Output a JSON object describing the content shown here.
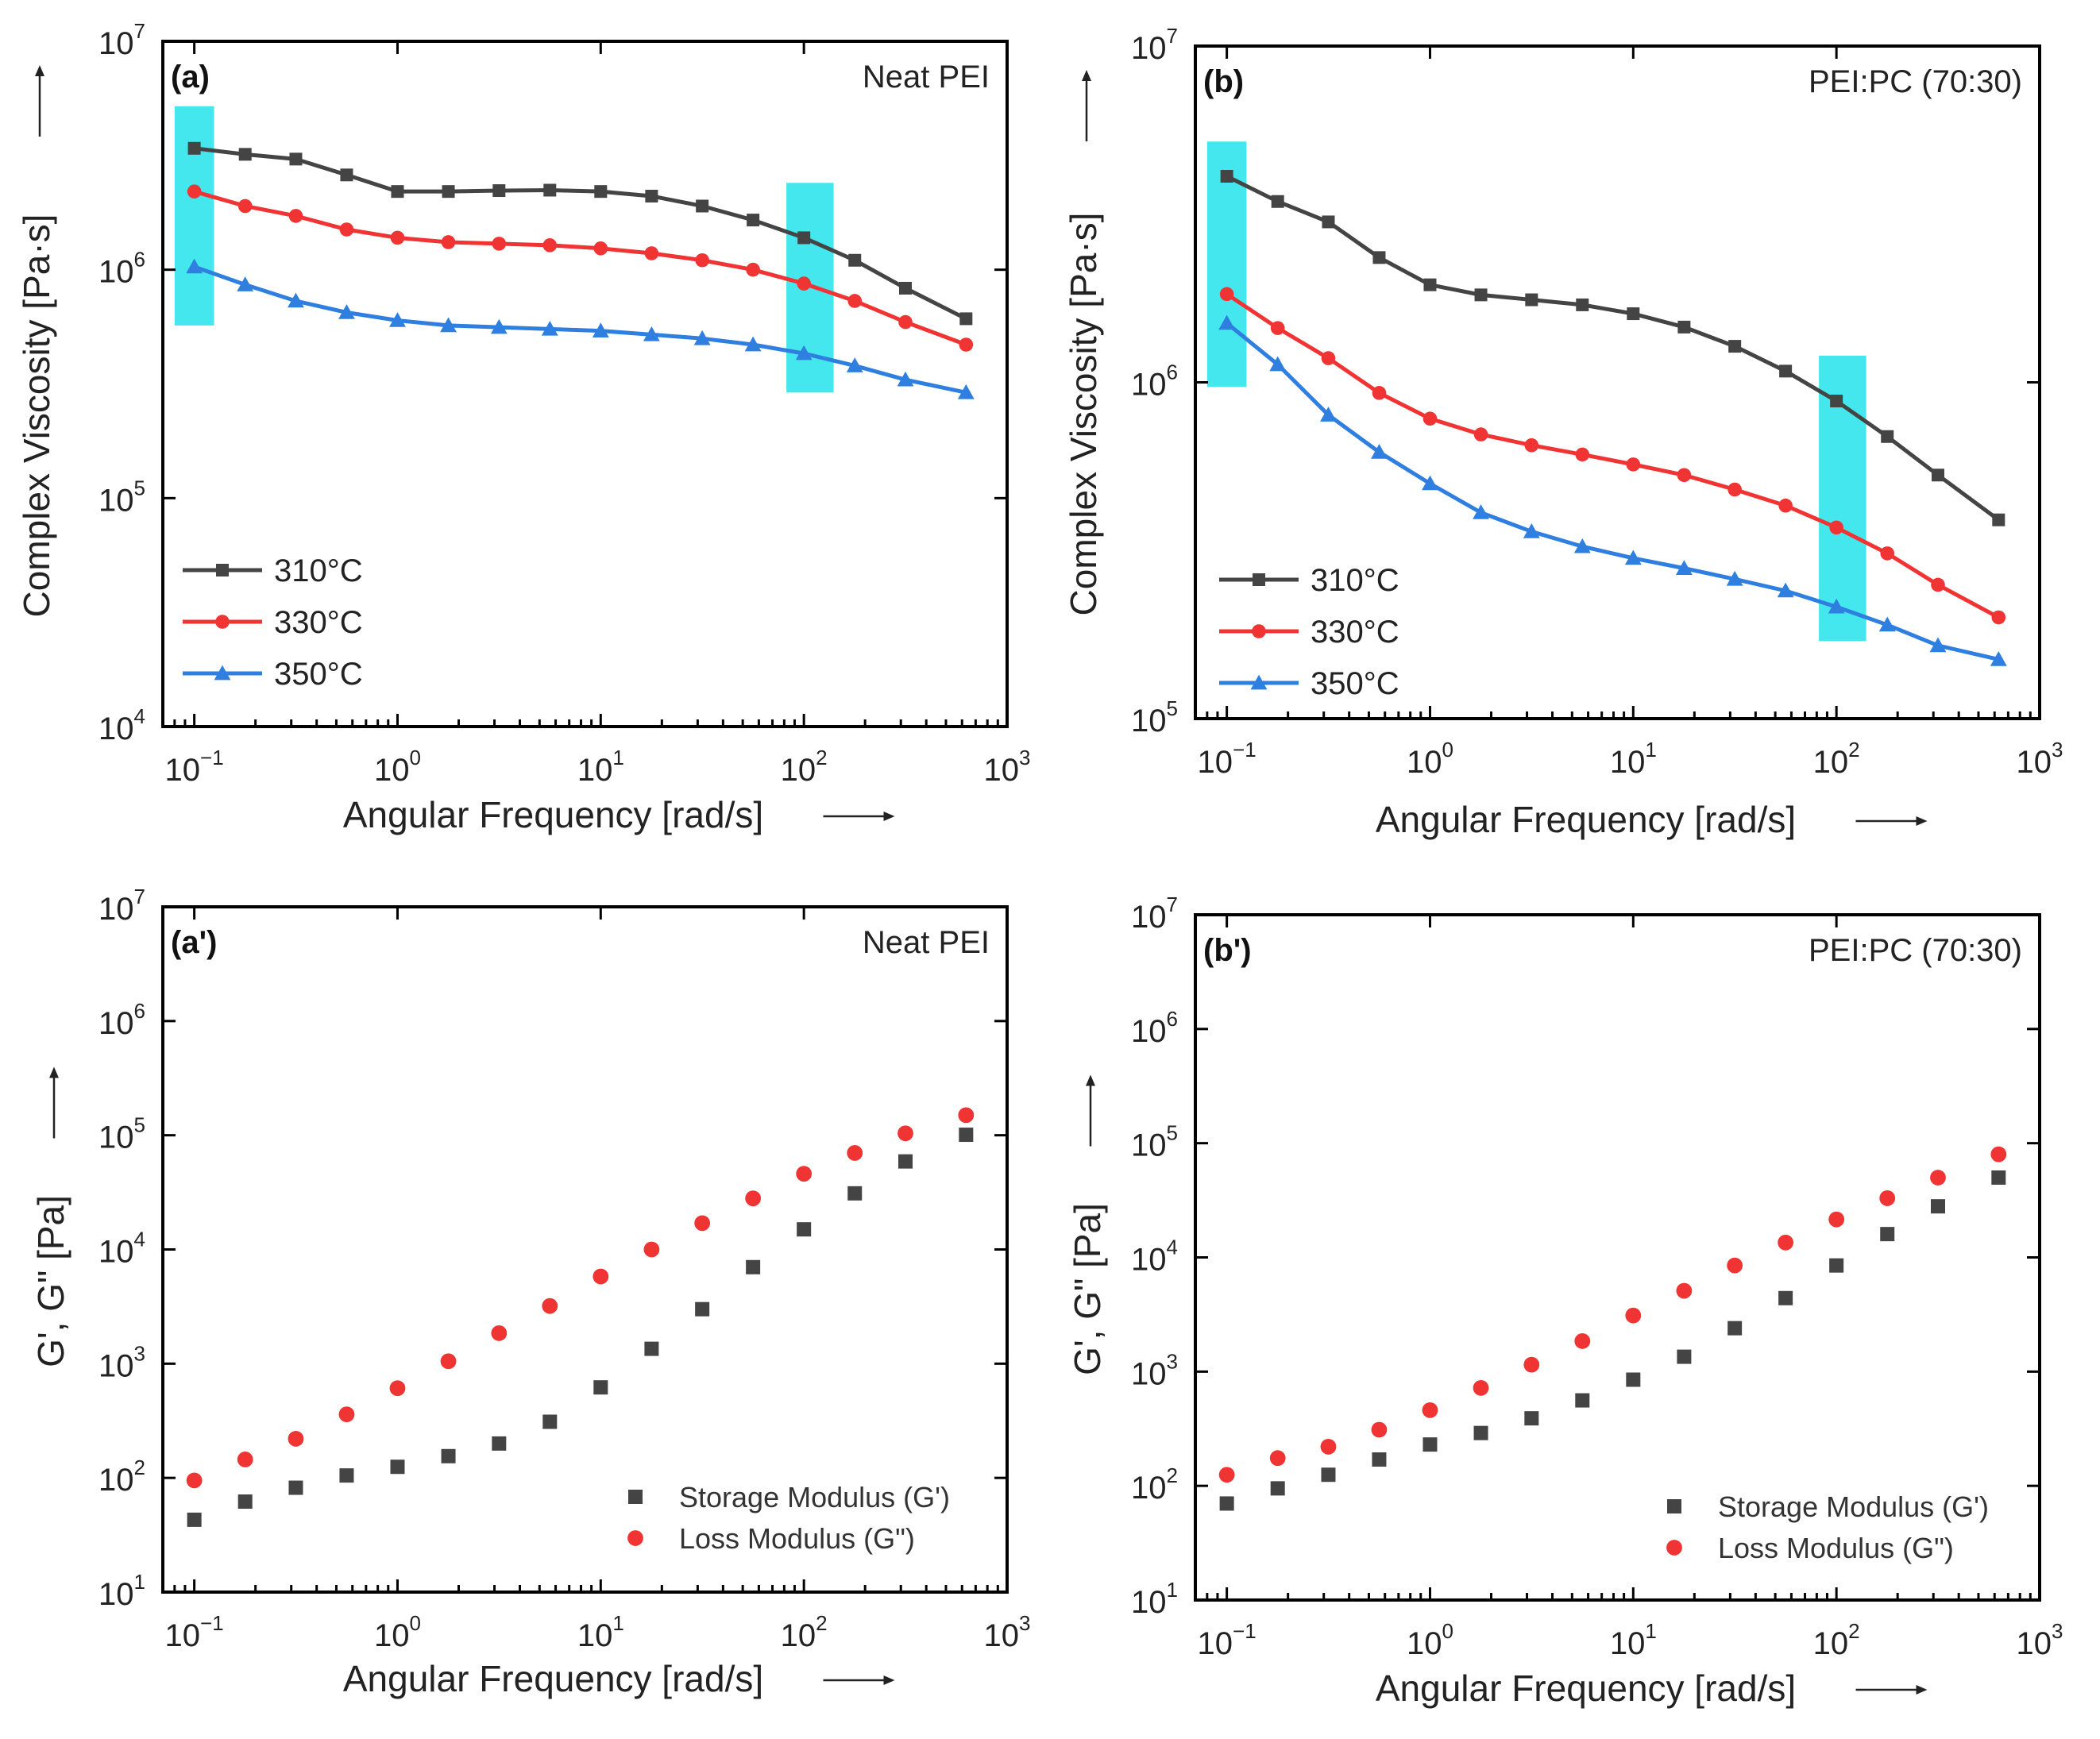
{
  "colors": {
    "c310": "#444444",
    "c330": "#f03434",
    "c350": "#2f7fe0",
    "storage": "#444444",
    "loss": "#f03434",
    "highlight": "#22e3ea"
  },
  "chart_data": [
    {
      "id": "a",
      "type": "line",
      "panel_label": "(a)",
      "sample": "Neat PEI",
      "xlabel": "Angular Frequency [rad/s]",
      "ylabel": "Complex Viscosity [Pa·s]",
      "xscale": "log",
      "yscale": "log",
      "xlim": [
        0.07,
        1000
      ],
      "ylim": [
        10000,
        10000000
      ],
      "xticks": [
        0.1,
        1,
        10,
        100,
        1000
      ],
      "xtick_labels": [
        [
          "10",
          "−1"
        ],
        [
          "10",
          "0"
        ],
        [
          "10",
          "1"
        ],
        [
          "10",
          "2"
        ],
        [
          "10",
          "3"
        ]
      ],
      "yticks": [
        10000,
        100000,
        1000000,
        10000000
      ],
      "ytick_labels": [
        [
          "10",
          "4"
        ],
        [
          "10",
          "5"
        ],
        [
          "10",
          "6"
        ],
        [
          "10",
          "7"
        ]
      ],
      "highlight_bands": [
        {
          "x": [
            0.08,
            0.125
          ],
          "y": [
            570000,
            5200000
          ]
        },
        {
          "x": [
            82,
            140
          ],
          "y": [
            290000,
            2400000
          ]
        }
      ],
      "legend": {
        "position": "bottom-left"
      },
      "x": [
        0.1,
        0.178,
        0.316,
        0.562,
        1,
        1.78,
        3.16,
        5.62,
        10,
        17.8,
        31.6,
        56.2,
        100,
        178,
        316,
        628
      ],
      "series": [
        {
          "name": "310°C",
          "marker": "square",
          "color_key": "c310",
          "values": [
            3400000,
            3200000,
            3050000,
            2600000,
            2200000,
            2200000,
            2220000,
            2230000,
            2200000,
            2100000,
            1900000,
            1650000,
            1380000,
            1100000,
            830000,
            610000
          ]
        },
        {
          "name": "330°C",
          "marker": "circle",
          "color_key": "c330",
          "values": [
            2200000,
            1900000,
            1720000,
            1500000,
            1380000,
            1320000,
            1300000,
            1280000,
            1240000,
            1180000,
            1100000,
            1000000,
            870000,
            730000,
            590000,
            470000
          ]
        },
        {
          "name": "350°C",
          "marker": "triangle",
          "color_key": "c350",
          "values": [
            1030000,
            860000,
            730000,
            650000,
            600000,
            570000,
            560000,
            550000,
            540000,
            520000,
            500000,
            470000,
            430000,
            380000,
            330000,
            290000
          ]
        }
      ]
    },
    {
      "id": "b",
      "type": "line",
      "panel_label": "(b)",
      "sample": "PEI:PC (70:30)",
      "xlabel": "Angular Frequency [rad/s]",
      "ylabel": "Complex Viscosity [Pa·s]",
      "xscale": "log",
      "yscale": "log",
      "xlim": [
        0.07,
        1000
      ],
      "ylim": [
        100000,
        10000000
      ],
      "xticks": [
        0.1,
        1,
        10,
        100,
        1000
      ],
      "xtick_labels": [
        [
          "10",
          "−1"
        ],
        [
          "10",
          "0"
        ],
        [
          "10",
          "1"
        ],
        [
          "10",
          "2"
        ],
        [
          "10",
          "3"
        ]
      ],
      "yticks": [
        100000,
        1000000,
        10000000
      ],
      "ytick_labels": [
        [
          "10",
          "5"
        ],
        [
          "10",
          "6"
        ],
        [
          "10",
          "7"
        ]
      ],
      "highlight_bands": [
        {
          "x": [
            0.08,
            0.125
          ],
          "y": [
            970000,
            5200000
          ]
        },
        {
          "x": [
            82,
            140
          ],
          "y": [
            170000,
            1200000
          ]
        }
      ],
      "legend": {
        "position": "bottom-left"
      },
      "x": [
        0.1,
        0.178,
        0.316,
        0.562,
        1,
        1.78,
        3.16,
        5.62,
        10,
        17.8,
        31.6,
        56.2,
        100,
        178,
        316,
        628
      ],
      "series": [
        {
          "name": "310°C",
          "marker": "square",
          "color_key": "c310",
          "values": [
            4100000,
            3450000,
            3000000,
            2350000,
            1950000,
            1820000,
            1760000,
            1700000,
            1600000,
            1460000,
            1280000,
            1080000,
            880000,
            690000,
            530000,
            390000
          ]
        },
        {
          "name": "330°C",
          "marker": "circle",
          "color_key": "c330",
          "values": [
            1830000,
            1450000,
            1180000,
            930000,
            780000,
            700000,
            650000,
            610000,
            570000,
            530000,
            480000,
            430000,
            370000,
            310000,
            250000,
            200000
          ]
        },
        {
          "name": "350°C",
          "marker": "triangle",
          "color_key": "c350",
          "values": [
            1500000,
            1130000,
            800000,
            620000,
            500000,
            410000,
            360000,
            325000,
            300000,
            280000,
            260000,
            240000,
            215000,
            190000,
            165000,
            150000
          ]
        }
      ]
    },
    {
      "id": "a2",
      "type": "scatter",
      "panel_label": "(a')",
      "sample": "Neat PEI",
      "xlabel": "Angular Frequency [rad/s]",
      "ylabel": "G', G\" [Pa]",
      "xscale": "log",
      "yscale": "log",
      "xlim": [
        0.07,
        1000
      ],
      "ylim": [
        10,
        10000000
      ],
      "xticks": [
        0.1,
        1,
        10,
        100,
        1000
      ],
      "xtick_labels": [
        [
          "10",
          "−1"
        ],
        [
          "10",
          "0"
        ],
        [
          "10",
          "1"
        ],
        [
          "10",
          "2"
        ],
        [
          "10",
          "3"
        ]
      ],
      "yticks": [
        10,
        100,
        1000,
        10000,
        100000,
        1000000,
        10000000
      ],
      "ytick_labels": [
        [
          "10",
          "1"
        ],
        [
          "10",
          "2"
        ],
        [
          "10",
          "3"
        ],
        [
          "10",
          "4"
        ],
        [
          "10",
          "5"
        ],
        [
          "10",
          "6"
        ],
        [
          "10",
          "7"
        ]
      ],
      "legend": {
        "position": "bottom-right"
      },
      "x": [
        0.1,
        0.178,
        0.316,
        0.562,
        1,
        1.78,
        3.16,
        5.62,
        10,
        17.8,
        31.6,
        56.2,
        100,
        178,
        316,
        628
      ],
      "series": [
        {
          "name": "Storage Modulus (G')",
          "marker": "square",
          "color_key": "storage",
          "values": [
            43,
            62,
            82,
            105,
            125,
            155,
            200,
            310,
            620,
            1350,
            3000,
            7000,
            15000,
            31000,
            59000,
            101000
          ]
        },
        {
          "name": "Loss Modulus (G\")",
          "marker": "circle",
          "color_key": "loss",
          "values": [
            95,
            145,
            220,
            360,
            610,
            1050,
            1850,
            3200,
            5800,
            10000,
            17000,
            28000,
            46000,
            70000,
            104000,
            150000
          ]
        }
      ]
    },
    {
      "id": "b2",
      "type": "scatter",
      "panel_label": "(b')",
      "sample": "PEI:PC (70:30)",
      "xlabel": "Angular Frequency [rad/s]",
      "ylabel": "G', G\" [Pa]",
      "xscale": "log",
      "yscale": "log",
      "xlim": [
        0.07,
        1000
      ],
      "ylim": [
        10,
        10000000
      ],
      "xticks": [
        0.1,
        1,
        10,
        100,
        1000
      ],
      "xtick_labels": [
        [
          "10",
          "−1"
        ],
        [
          "10",
          "0"
        ],
        [
          "10",
          "1"
        ],
        [
          "10",
          "2"
        ],
        [
          "10",
          "3"
        ]
      ],
      "yticks": [
        10,
        100,
        1000,
        10000,
        100000,
        1000000,
        10000000
      ],
      "ytick_labels": [
        [
          "10",
          "1"
        ],
        [
          "10",
          "2"
        ],
        [
          "10",
          "3"
        ],
        [
          "10",
          "4"
        ],
        [
          "10",
          "5"
        ],
        [
          "10",
          "6"
        ],
        [
          "10",
          "7"
        ]
      ],
      "legend": {
        "position": "bottom-right"
      },
      "x": [
        0.1,
        0.178,
        0.316,
        0.562,
        1,
        1.78,
        3.16,
        5.62,
        10,
        17.8,
        31.6,
        56.2,
        100,
        178,
        316,
        628
      ],
      "series": [
        {
          "name": "Storage Modulus (G')",
          "marker": "square",
          "color_key": "storage",
          "values": [
            70,
            95,
            125,
            170,
            230,
            290,
            390,
            560,
            850,
            1350,
            2400,
            4400,
            8500,
            16000,
            28000,
            50000
          ]
        },
        {
          "name": "Loss Modulus (G\")",
          "marker": "circle",
          "color_key": "loss",
          "values": [
            125,
            175,
            220,
            310,
            460,
            720,
            1150,
            1850,
            3100,
            5100,
            8500,
            13500,
            21500,
            33000,
            50000,
            80000
          ]
        }
      ]
    }
  ]
}
